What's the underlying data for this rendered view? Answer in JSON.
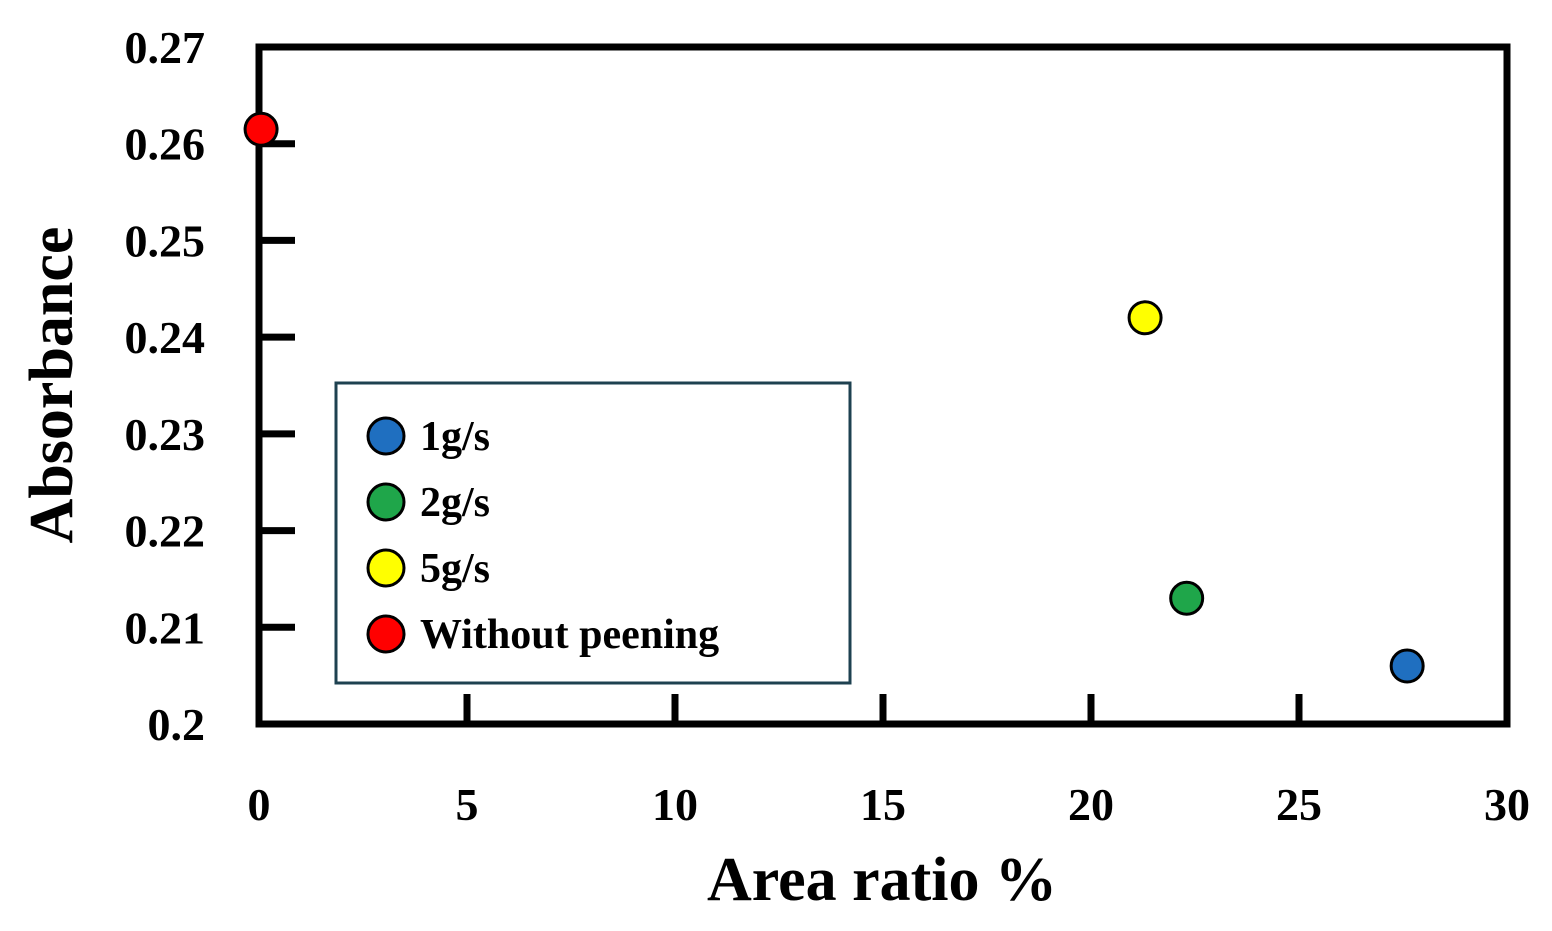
{
  "chart_data": {
    "type": "scatter",
    "title": "",
    "xlabel": "Area ratio  %",
    "ylabel": "Absorbance",
    "xlim": [
      0,
      30
    ],
    "ylim": [
      0.2,
      0.27
    ],
    "xticks": [
      0,
      5,
      10,
      15,
      20,
      25,
      30
    ],
    "xtick_labels": [
      "0",
      "5",
      "10",
      "15",
      "20",
      "25",
      "30"
    ],
    "yticks": [
      0.2,
      0.21,
      0.22,
      0.23,
      0.24,
      0.25,
      0.26,
      0.27
    ],
    "ytick_labels": [
      "0.2",
      "0.21",
      "0.22",
      "0.23",
      "0.24",
      "0.25",
      "0.26",
      "0.27"
    ],
    "grid": false,
    "legend_position": "lower-left",
    "series": [
      {
        "name": "1g/s",
        "color": "#1f6fc0",
        "points": [
          {
            "x": 27.6,
            "y": 0.206
          }
        ]
      },
      {
        "name": "2g/s",
        "color": "#1fa64a",
        "points": [
          {
            "x": 22.3,
            "y": 0.213
          }
        ]
      },
      {
        "name": "5g/s",
        "color": "#ffff00",
        "points": [
          {
            "x": 21.3,
            "y": 0.242
          }
        ]
      },
      {
        "name": "Without peening",
        "color": "#ff0000",
        "points": [
          {
            "x": 0.05,
            "y": 0.2615
          }
        ]
      }
    ]
  }
}
